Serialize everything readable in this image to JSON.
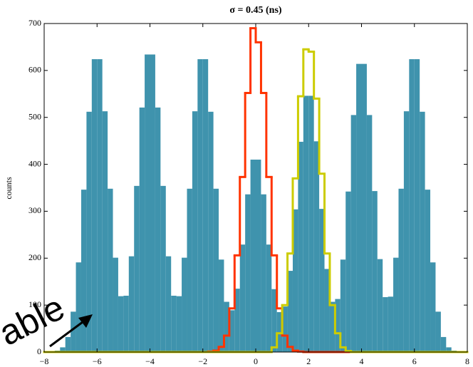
{
  "chart_data": {
    "type": "histogram",
    "title": "σ = 0.45 (ns)",
    "ylabel": "counts",
    "annotation": "able",
    "bins": [
      -8,
      -7.8,
      -7.6,
      -7.4,
      -7.2,
      -7,
      -6.8,
      -6.6,
      -6.4,
      -6.2,
      -6,
      -5.8,
      -5.6,
      -5.4,
      -5.2,
      -5,
      -4.8,
      -4.6,
      -4.4,
      -4.2,
      -4,
      -3.8,
      -3.6,
      -3.4,
      -3.2,
      -3,
      -2.8,
      -2.6,
      -2.4,
      -2.2,
      -2,
      -1.8,
      -1.6,
      -1.4,
      -1.2,
      -1,
      -0.8,
      -0.6,
      -0.4,
      -0.2,
      0,
      0.2,
      0.4,
      0.6,
      0.8,
      1,
      1.2,
      1.4,
      1.6,
      1.8,
      2,
      2.2,
      2.4,
      2.6,
      2.8,
      3,
      3.2,
      3.4,
      3.6,
      3.8,
      4,
      4.2,
      4.4,
      4.6,
      4.8,
      5,
      5.2,
      5.4,
      5.6,
      5.8,
      6,
      6.2,
      6.4,
      6.6,
      6.8,
      7,
      7.2,
      7.4,
      7.6,
      7.8,
      8
    ],
    "series": [
      {
        "style": "bar",
        "color": "#3f93ad",
        "values": [
          0,
          1,
          3,
          10,
          32,
          86,
          191,
          346,
          512,
          624,
          624,
          513,
          348,
          201,
          119,
          120,
          204,
          354,
          521,
          634,
          634,
          521,
          354,
          204,
          120,
          119,
          201,
          348,
          513,
          624,
          624,
          512,
          348,
          197,
          107,
          89,
          135,
          229,
          336,
          410,
          410,
          336,
          229,
          134,
          85,
          97,
          173,
          304,
          448,
          546,
          546,
          449,
          305,
          177,
          107,
          113,
          197,
          342,
          505,
          614,
          614,
          505,
          343,
          198,
          117,
          118,
          201,
          348,
          513,
          624,
          624,
          512,
          346,
          191,
          86,
          32,
          10,
          3,
          1,
          0
        ]
      },
      {
        "style": "step",
        "color": "#ff3300",
        "values": [
          0,
          0,
          0,
          0,
          0,
          0,
          0,
          0,
          0,
          0,
          0,
          0,
          0,
          0,
          0,
          0,
          0,
          0,
          0,
          0,
          0,
          0,
          0,
          0,
          0,
          0,
          0,
          0,
          0,
          0,
          0,
          1,
          3,
          11,
          35,
          93,
          206,
          373,
          552,
          690,
          660,
          552,
          373,
          206,
          93,
          35,
          11,
          3,
          1,
          0,
          0,
          0,
          0,
          0,
          0,
          0,
          0,
          0,
          0,
          0,
          0,
          0,
          0,
          0,
          0,
          0,
          0,
          0,
          0,
          0,
          0,
          0,
          0,
          0,
          0,
          0,
          0,
          0,
          0,
          0
        ]
      },
      {
        "style": "step",
        "color": "#cccc00",
        "values": [
          0,
          0,
          0,
          0,
          0,
          0,
          0,
          0,
          0,
          0,
          0,
          0,
          0,
          0,
          0,
          0,
          0,
          0,
          0,
          0,
          0,
          0,
          0,
          0,
          0,
          0,
          0,
          0,
          0,
          0,
          0,
          0,
          0,
          0,
          0,
          0,
          0,
          0,
          0,
          0,
          0,
          0,
          0,
          10,
          40,
          100,
          210,
          370,
          545,
          645,
          640,
          540,
          380,
          210,
          100,
          40,
          10,
          2,
          0,
          0,
          0,
          0,
          0,
          0,
          0,
          0,
          0,
          0,
          0,
          0,
          0,
          0,
          0,
          0,
          0,
          0,
          0,
          0,
          0,
          0
        ]
      }
    ],
    "xlim": [
      -8,
      8
    ],
    "ylim": [
      0,
      700
    ],
    "xticks": [
      {
        "value": -8,
        "label": "−8"
      },
      {
        "value": -6,
        "label": "−6"
      },
      {
        "value": -4,
        "label": "−4"
      },
      {
        "value": -2,
        "label": "−2"
      },
      0,
      2,
      4,
      6,
      8
    ],
    "yticks": [
      0,
      100,
      200,
      300,
      400,
      500,
      600,
      700
    ]
  }
}
